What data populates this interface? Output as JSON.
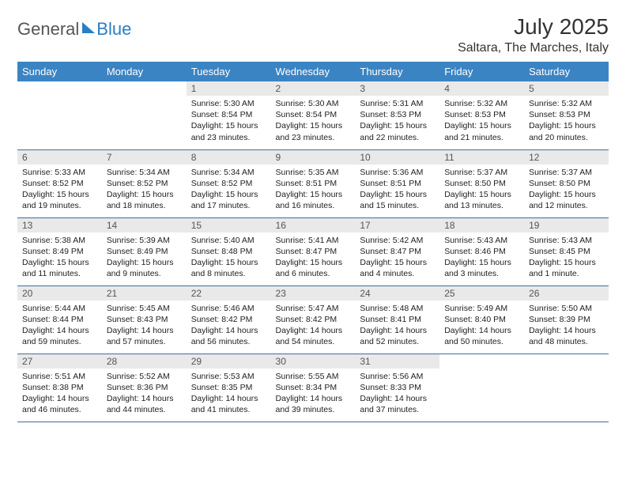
{
  "logo": {
    "word1": "General",
    "word2": "Blue"
  },
  "title": "July 2025",
  "location": "Saltara, The Marches, Italy",
  "colors": {
    "header_bg": "#3b84c4",
    "header_text": "#ffffff",
    "daynum_bg": "#e9e9e9",
    "border": "#3b6fa5",
    "logo_accent": "#2a7ec4",
    "body_text": "#222222"
  },
  "days": [
    "Sunday",
    "Monday",
    "Tuesday",
    "Wednesday",
    "Thursday",
    "Friday",
    "Saturday"
  ],
  "weeks": [
    [
      null,
      null,
      {
        "n": "1",
        "sr": "5:30 AM",
        "ss": "8:54 PM",
        "dl": "15 hours and 23 minutes."
      },
      {
        "n": "2",
        "sr": "5:30 AM",
        "ss": "8:54 PM",
        "dl": "15 hours and 23 minutes."
      },
      {
        "n": "3",
        "sr": "5:31 AM",
        "ss": "8:53 PM",
        "dl": "15 hours and 22 minutes."
      },
      {
        "n": "4",
        "sr": "5:32 AM",
        "ss": "8:53 PM",
        "dl": "15 hours and 21 minutes."
      },
      {
        "n": "5",
        "sr": "5:32 AM",
        "ss": "8:53 PM",
        "dl": "15 hours and 20 minutes."
      }
    ],
    [
      {
        "n": "6",
        "sr": "5:33 AM",
        "ss": "8:52 PM",
        "dl": "15 hours and 19 minutes."
      },
      {
        "n": "7",
        "sr": "5:34 AM",
        "ss": "8:52 PM",
        "dl": "15 hours and 18 minutes."
      },
      {
        "n": "8",
        "sr": "5:34 AM",
        "ss": "8:52 PM",
        "dl": "15 hours and 17 minutes."
      },
      {
        "n": "9",
        "sr": "5:35 AM",
        "ss": "8:51 PM",
        "dl": "15 hours and 16 minutes."
      },
      {
        "n": "10",
        "sr": "5:36 AM",
        "ss": "8:51 PM",
        "dl": "15 hours and 15 minutes."
      },
      {
        "n": "11",
        "sr": "5:37 AM",
        "ss": "8:50 PM",
        "dl": "15 hours and 13 minutes."
      },
      {
        "n": "12",
        "sr": "5:37 AM",
        "ss": "8:50 PM",
        "dl": "15 hours and 12 minutes."
      }
    ],
    [
      {
        "n": "13",
        "sr": "5:38 AM",
        "ss": "8:49 PM",
        "dl": "15 hours and 11 minutes."
      },
      {
        "n": "14",
        "sr": "5:39 AM",
        "ss": "8:49 PM",
        "dl": "15 hours and 9 minutes."
      },
      {
        "n": "15",
        "sr": "5:40 AM",
        "ss": "8:48 PM",
        "dl": "15 hours and 8 minutes."
      },
      {
        "n": "16",
        "sr": "5:41 AM",
        "ss": "8:47 PM",
        "dl": "15 hours and 6 minutes."
      },
      {
        "n": "17",
        "sr": "5:42 AM",
        "ss": "8:47 PM",
        "dl": "15 hours and 4 minutes."
      },
      {
        "n": "18",
        "sr": "5:43 AM",
        "ss": "8:46 PM",
        "dl": "15 hours and 3 minutes."
      },
      {
        "n": "19",
        "sr": "5:43 AM",
        "ss": "8:45 PM",
        "dl": "15 hours and 1 minute."
      }
    ],
    [
      {
        "n": "20",
        "sr": "5:44 AM",
        "ss": "8:44 PM",
        "dl": "14 hours and 59 minutes."
      },
      {
        "n": "21",
        "sr": "5:45 AM",
        "ss": "8:43 PM",
        "dl": "14 hours and 57 minutes."
      },
      {
        "n": "22",
        "sr": "5:46 AM",
        "ss": "8:42 PM",
        "dl": "14 hours and 56 minutes."
      },
      {
        "n": "23",
        "sr": "5:47 AM",
        "ss": "8:42 PM",
        "dl": "14 hours and 54 minutes."
      },
      {
        "n": "24",
        "sr": "5:48 AM",
        "ss": "8:41 PM",
        "dl": "14 hours and 52 minutes."
      },
      {
        "n": "25",
        "sr": "5:49 AM",
        "ss": "8:40 PM",
        "dl": "14 hours and 50 minutes."
      },
      {
        "n": "26",
        "sr": "5:50 AM",
        "ss": "8:39 PM",
        "dl": "14 hours and 48 minutes."
      }
    ],
    [
      {
        "n": "27",
        "sr": "5:51 AM",
        "ss": "8:38 PM",
        "dl": "14 hours and 46 minutes."
      },
      {
        "n": "28",
        "sr": "5:52 AM",
        "ss": "8:36 PM",
        "dl": "14 hours and 44 minutes."
      },
      {
        "n": "29",
        "sr": "5:53 AM",
        "ss": "8:35 PM",
        "dl": "14 hours and 41 minutes."
      },
      {
        "n": "30",
        "sr": "5:55 AM",
        "ss": "8:34 PM",
        "dl": "14 hours and 39 minutes."
      },
      {
        "n": "31",
        "sr": "5:56 AM",
        "ss": "8:33 PM",
        "dl": "14 hours and 37 minutes."
      },
      null,
      null
    ]
  ]
}
